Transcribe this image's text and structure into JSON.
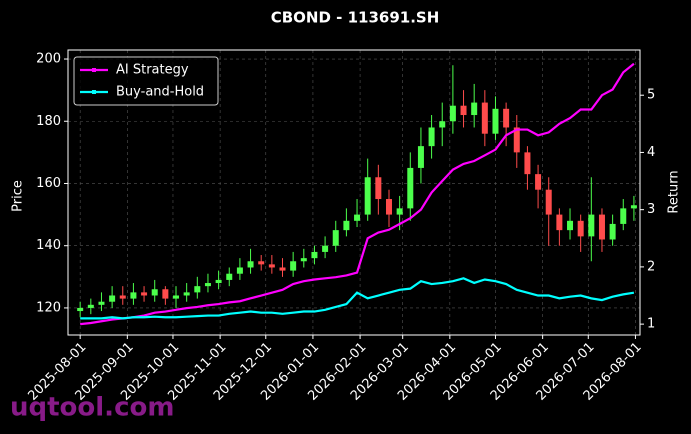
{
  "chart_data": {
    "type": "candlestick",
    "title": "CBOND - 113691.SH",
    "ylabel": "Price",
    "y2label": "Return",
    "watermark": "uqtool.com",
    "x": [
      "2025-08-01",
      "2025-08-08",
      "2025-08-15",
      "2025-08-22",
      "2025-08-29",
      "2025-09-05",
      "2025-09-12",
      "2025-09-19",
      "2025-09-26",
      "2025-10-03",
      "2025-10-10",
      "2025-10-17",
      "2025-10-24",
      "2025-10-31",
      "2025-11-07",
      "2025-11-14",
      "2025-11-21",
      "2025-11-28",
      "2025-12-05",
      "2025-12-12",
      "2025-12-19",
      "2025-12-26",
      "2026-01-02",
      "2026-01-09",
      "2026-01-16",
      "2026-01-23",
      "2026-01-30",
      "2026-02-06",
      "2026-02-13",
      "2026-02-20",
      "2026-02-27",
      "2026-03-06",
      "2026-03-13",
      "2026-03-20",
      "2026-03-27",
      "2026-04-03",
      "2026-04-10",
      "2026-04-17",
      "2026-04-24",
      "2026-05-01",
      "2026-05-08",
      "2026-05-15",
      "2026-05-22",
      "2026-05-29",
      "2026-06-05",
      "2026-06-12",
      "2026-06-19",
      "2026-06-26",
      "2026-07-03",
      "2026-07-10",
      "2026-07-17",
      "2026-07-24",
      "2026-07-31"
    ],
    "open": [
      119,
      120,
      121,
      122,
      124,
      123,
      125,
      124,
      126,
      123,
      124,
      125,
      127,
      128,
      129,
      131,
      133,
      135,
      134,
      133,
      132,
      135,
      136,
      138,
      140,
      145,
      148,
      150,
      162,
      155,
      150,
      152,
      165,
      172,
      178,
      180,
      185,
      182,
      186,
      176,
      184,
      178,
      170,
      163,
      158,
      150,
      145,
      148,
      143,
      150,
      142,
      147,
      152
    ],
    "high": [
      122,
      123,
      125,
      127,
      127,
      128,
      127,
      129,
      127,
      127,
      128,
      130,
      131,
      132,
      133,
      136,
      139,
      137,
      137,
      136,
      138,
      139,
      140,
      143,
      148,
      152,
      155,
      168,
      166,
      158,
      156,
      170,
      178,
      182,
      186,
      198,
      190,
      192,
      190,
      188,
      186,
      182,
      172,
      166,
      162,
      152,
      152,
      150,
      162,
      152,
      150,
      155,
      156
    ],
    "low": [
      117,
      118,
      119,
      120,
      121,
      121,
      122,
      122,
      121,
      120,
      122,
      123,
      125,
      126,
      127,
      129,
      131,
      132,
      131,
      130,
      130,
      133,
      134,
      136,
      138,
      143,
      146,
      148,
      150,
      146,
      145,
      148,
      160,
      168,
      172,
      176,
      178,
      178,
      172,
      174,
      172,
      165,
      158,
      152,
      140,
      140,
      142,
      138,
      135,
      138,
      140,
      145,
      148
    ],
    "close": [
      120,
      121,
      122,
      124,
      123,
      125,
      124,
      126,
      123,
      124,
      125,
      127,
      128,
      129,
      131,
      133,
      135,
      134,
      133,
      132,
      135,
      136,
      138,
      140,
      145,
      148,
      150,
      162,
      155,
      150,
      152,
      165,
      172,
      178,
      180,
      185,
      182,
      186,
      176,
      184,
      178,
      170,
      163,
      158,
      150,
      145,
      148,
      143,
      150,
      142,
      147,
      152,
      153
    ],
    "up_color": "#4cff4c",
    "down_color": "#ff4c4c",
    "series": [
      {
        "name": "AI Strategy",
        "color": "#ff00ff",
        "axis": "y2",
        "values": [
          1.0,
          1.02,
          1.05,
          1.08,
          1.1,
          1.12,
          1.15,
          1.2,
          1.22,
          1.25,
          1.28,
          1.3,
          1.33,
          1.35,
          1.38,
          1.4,
          1.45,
          1.5,
          1.55,
          1.6,
          1.7,
          1.75,
          1.78,
          1.8,
          1.82,
          1.85,
          1.9,
          2.5,
          2.6,
          2.65,
          2.75,
          2.85,
          3.0,
          3.3,
          3.5,
          3.7,
          3.8,
          3.85,
          3.95,
          4.05,
          4.3,
          4.4,
          4.4,
          4.3,
          4.35,
          4.5,
          4.6,
          4.75,
          4.75,
          5.0,
          5.1,
          5.4,
          5.55
        ]
      },
      {
        "name": "Buy-and-Hold",
        "color": "#00ffff",
        "axis": "y2",
        "values": [
          1.1,
          1.1,
          1.1,
          1.12,
          1.1,
          1.12,
          1.12,
          1.13,
          1.12,
          1.12,
          1.13,
          1.14,
          1.15,
          1.15,
          1.18,
          1.2,
          1.22,
          1.2,
          1.2,
          1.18,
          1.2,
          1.22,
          1.22,
          1.25,
          1.3,
          1.35,
          1.55,
          1.45,
          1.5,
          1.55,
          1.6,
          1.62,
          1.75,
          1.7,
          1.72,
          1.75,
          1.8,
          1.72,
          1.78,
          1.75,
          1.7,
          1.6,
          1.55,
          1.5,
          1.5,
          1.45,
          1.48,
          1.5,
          1.45,
          1.42,
          1.48,
          1.52,
          1.55
        ]
      }
    ],
    "xlim": [
      "2025-07-24",
      "2026-08-04"
    ],
    "xticks": [
      "2025-08-01",
      "2025-09-01",
      "2025-10-01",
      "2025-11-01",
      "2025-12-01",
      "2026-01-01",
      "2026-02-01",
      "2026-03-01",
      "2026-04-01",
      "2026-05-01",
      "2026-06-01",
      "2026-07-01",
      "2026-08-01"
    ],
    "ylim": [
      111.3,
      202.9
    ],
    "yticks": [
      120,
      140,
      160,
      180,
      200
    ],
    "y2lim": [
      0.81,
      5.79
    ],
    "y2ticks": [
      1,
      2,
      3,
      4,
      5
    ],
    "grid": true,
    "legend": "upper left"
  }
}
